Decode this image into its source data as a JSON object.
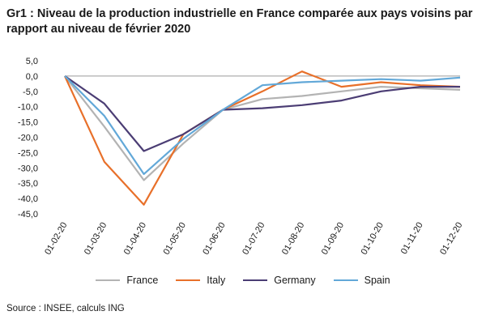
{
  "title": {
    "line1": "Gr1 : Niveau de la production industrielle en France comparée aux pays voisins par",
    "line2": "rapport au niveau de février 2020"
  },
  "source": "Source : INSEE, calculs ING",
  "chart_data": {
    "type": "line",
    "categories": [
      "01-02-20",
      "01-03-20",
      "01-04-20",
      "01-05-20",
      "01-06-20",
      "01-07-20",
      "01-08-20",
      "01-09-20",
      "01-10-20",
      "01-11-20",
      "01-12-20"
    ],
    "ylim": [
      -45,
      5
    ],
    "yticks": [
      "5,0",
      "0,0",
      "-5,0",
      "-10,0",
      "-15,0",
      "-20,0",
      "-25,0",
      "-30,0",
      "-35,0",
      "-40,0",
      "-45,0"
    ],
    "grid": false,
    "legend_position": "bottom",
    "series": [
      {
        "name": "France",
        "color": "#b3b3b3",
        "values": [
          0,
          -16.5,
          -34,
          -22,
          -11,
          -7.5,
          -6.5,
          -5,
          -3.5,
          -4,
          -4.5
        ]
      },
      {
        "name": "Italy",
        "color": "#e8702a",
        "values": [
          0,
          -28,
          -42,
          -19,
          -11,
          -5,
          1.5,
          -3.5,
          -2,
          -3,
          -3.5
        ]
      },
      {
        "name": "Germany",
        "color": "#4b3d74",
        "values": [
          0,
          -9,
          -24.5,
          -19,
          -11,
          -10.5,
          -9.5,
          -8,
          -5,
          -3.5,
          -3.5
        ]
      },
      {
        "name": "Spain",
        "color": "#62a8d8",
        "values": [
          0,
          -13,
          -32,
          -20.5,
          -11,
          -3,
          -2,
          -1.5,
          -1,
          -1.5,
          -0.5
        ]
      }
    ]
  }
}
